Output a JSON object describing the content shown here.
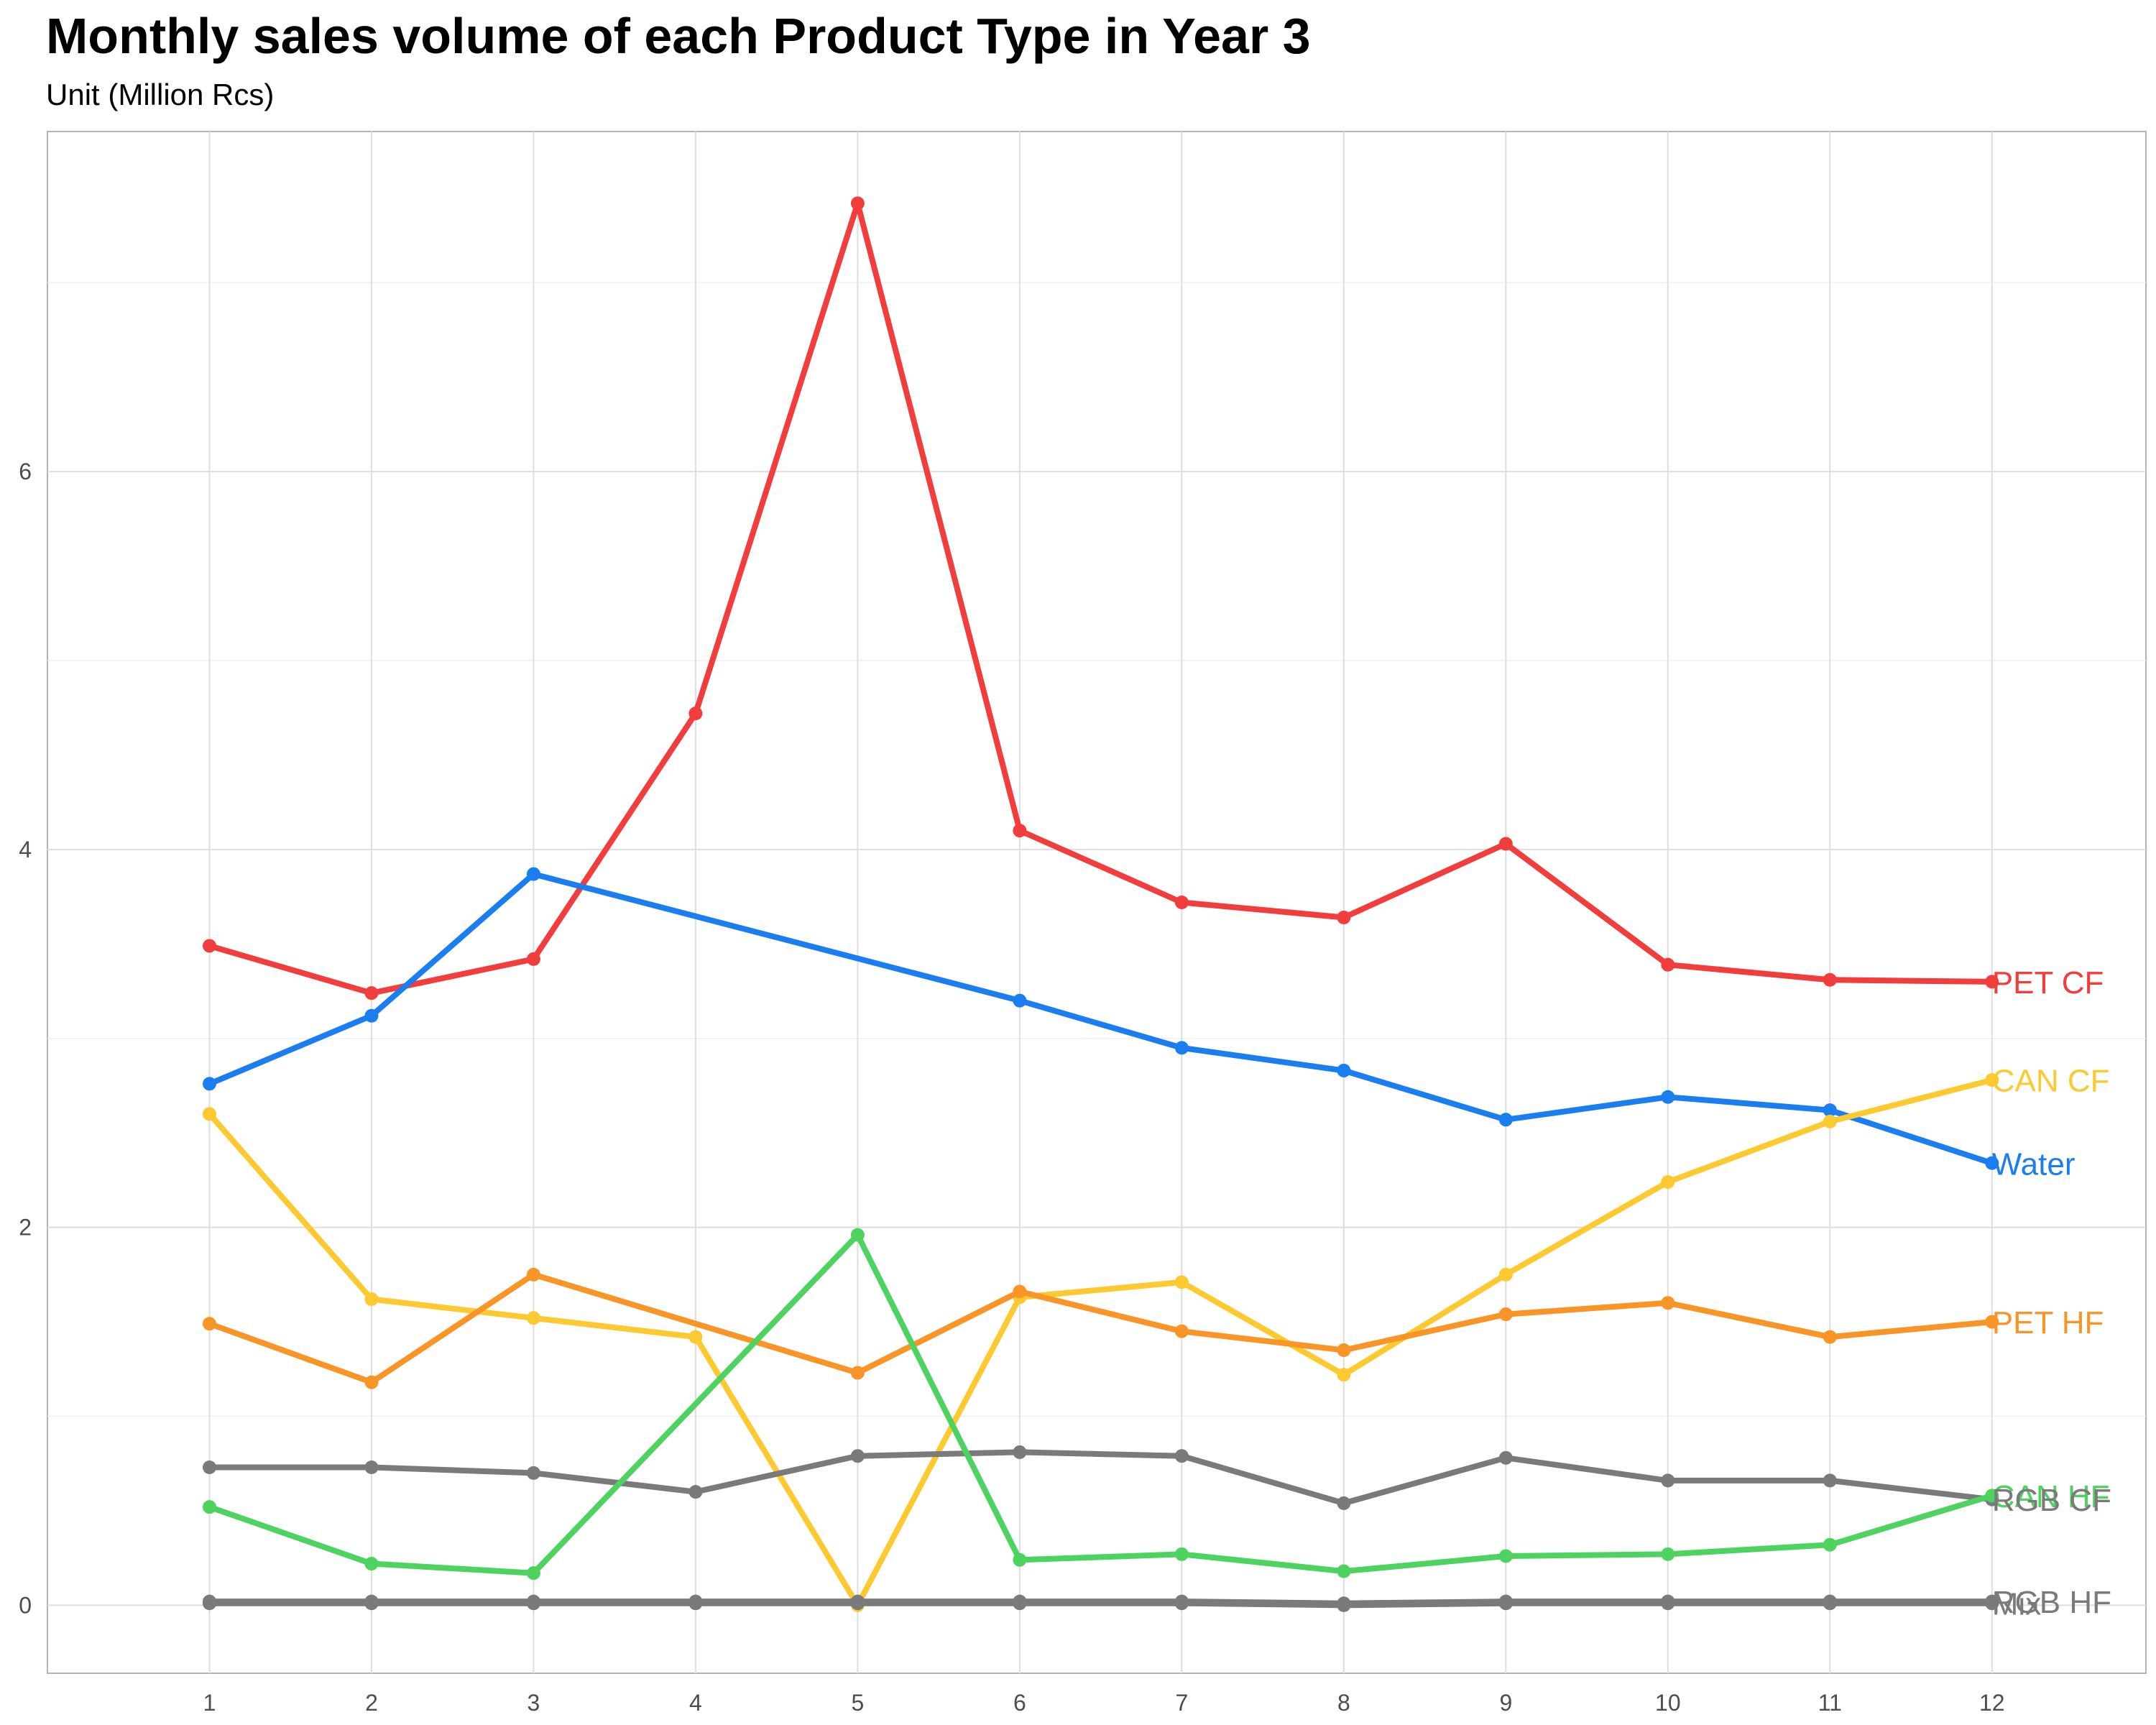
{
  "chart_data": {
    "type": "line",
    "title": "Monthly sales volume of each Product Type in Year 3",
    "subtitle": "Unit (Million Rcs)",
    "xlabel": "",
    "ylabel": "",
    "x": [
      1,
      2,
      3,
      4,
      5,
      6,
      7,
      8,
      9,
      10,
      11,
      12
    ],
    "xlim": [
      0.0,
      12.95
    ],
    "ylim": [
      -0.36,
      7.8
    ],
    "yticks": [
      0,
      2,
      4,
      6
    ],
    "grid": true,
    "legend": "none",
    "series": [
      {
        "name": "PET CF",
        "color": "#f23d3d",
        "values": [
          3.49,
          3.24,
          3.42,
          4.72,
          7.42,
          4.1,
          3.72,
          3.64,
          4.03,
          3.39,
          3.31,
          3.3
        ]
      },
      {
        "name": "Water",
        "color": "#1a7ef0",
        "values": [
          2.76,
          3.12,
          3.87,
          null,
          null,
          3.2,
          2.95,
          2.83,
          2.57,
          2.69,
          2.62,
          2.34
        ]
      },
      {
        "name": "CAN CF",
        "color": "#fcca30",
        "values": [
          2.6,
          1.62,
          1.52,
          1.42,
          0.0,
          1.63,
          1.71,
          1.22,
          1.75,
          2.24,
          2.56,
          2.78
        ]
      },
      {
        "name": "PET HF",
        "color": "#f99527",
        "values": [
          1.49,
          1.18,
          1.75,
          null,
          1.23,
          1.66,
          1.45,
          1.35,
          1.54,
          1.6,
          1.42,
          1.5
        ]
      },
      {
        "name": "RGB CF",
        "color": "#7a7a7a",
        "values": [
          0.73,
          0.73,
          0.7,
          0.6,
          0.79,
          0.81,
          0.79,
          0.54,
          0.78,
          0.66,
          0.66,
          0.56
        ]
      },
      {
        "name": "CAN HF",
        "color": "#4ed260",
        "values": [
          0.52,
          0.22,
          0.17,
          null,
          1.96,
          0.24,
          0.27,
          0.18,
          0.26,
          0.27,
          0.32,
          0.58
        ]
      },
      {
        "name": "RGB HF",
        "color": "#7a7a7a",
        "values": [
          0.02,
          0.02,
          0.02,
          0.02,
          0.02,
          0.02,
          0.02,
          0.01,
          0.02,
          0.02,
          0.02,
          0.02
        ]
      },
      {
        "name": "Mix",
        "color": "#7a7a7a",
        "values": [
          0.01,
          0.01,
          0.01,
          0.01,
          0.01,
          0.01,
          0.01,
          0.0,
          0.01,
          0.01,
          0.01,
          0.01
        ]
      }
    ],
    "labels_at_end": [
      "PET CF",
      "CAN CF",
      "Water",
      "PET HF",
      "CAN HF",
      "RGB CF",
      "RGB HF",
      "Mix"
    ]
  }
}
